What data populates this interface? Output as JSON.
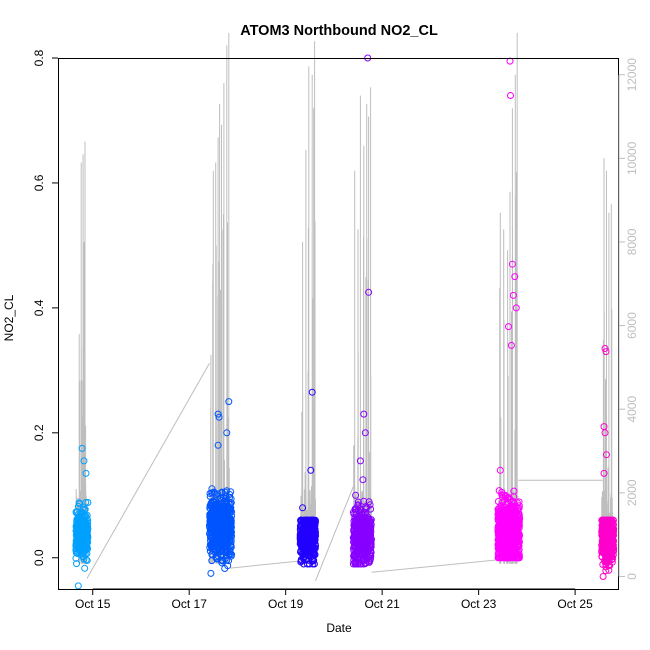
{
  "chart_data": {
    "type": "scatter",
    "title": "ATOM3 Northbound NO2_CL",
    "xlabel": "Date",
    "ylabel": "NO2_CL",
    "x_ticks": [
      "Oct 15",
      "Oct 17",
      "Oct 19",
      "Oct 21",
      "Oct 23",
      "Oct 25"
    ],
    "x_tick_days": [
      15,
      17,
      19,
      21,
      23,
      25
    ],
    "xlim_days": [
      14.28,
      25.91
    ],
    "ylim": [
      -0.05,
      0.8
    ],
    "y_ticks": [
      "0.0",
      "0.2",
      "0.4",
      "0.6",
      "0.8"
    ],
    "y_tick_values": [
      0.0,
      0.2,
      0.4,
      0.6,
      0.8
    ],
    "y2_ticks": [
      "0",
      "2000",
      "4000",
      "6000",
      "8000",
      "10000",
      "12000"
    ],
    "y2_tick_values": [
      0,
      2000,
      4000,
      6000,
      8000,
      10000,
      12000
    ],
    "y2lim": [
      -300,
      12400
    ],
    "grid": false,
    "secondary_series": {
      "color": "#bebebe",
      "segments": [
        {
          "day_start": 14.65,
          "day_end": 14.88,
          "base": 300,
          "peaks": [
            [
              14.72,
              5800
            ],
            [
              14.76,
              9900
            ],
            [
              14.8,
              10100
            ],
            [
              14.84,
              10400
            ],
            [
              14.82,
              8000
            ]
          ]
        },
        {
          "day_start": 17.42,
          "day_end": 17.85,
          "base": 300,
          "peaks": [
            [
              17.45,
              5300
            ],
            [
              17.5,
              9700
            ],
            [
              17.55,
              9900
            ],
            [
              17.6,
              10500
            ],
            [
              17.63,
              11300
            ],
            [
              17.67,
              10800
            ],
            [
              17.72,
              11800
            ],
            [
              17.78,
              12700
            ],
            [
              17.82,
              13000
            ]
          ]
        },
        {
          "day_start": 19.3,
          "day_end": 19.62,
          "base": 300,
          "peaks": [
            [
              19.35,
              8000
            ],
            [
              19.42,
              10200
            ],
            [
              19.48,
              12200
            ],
            [
              19.55,
              12000
            ],
            [
              19.6,
              12800
            ],
            [
              19.58,
              11200
            ]
          ]
        },
        {
          "day_start": 20.4,
          "day_end": 20.78,
          "base": 300,
          "peaks": [
            [
              20.43,
              9700
            ],
            [
              20.5,
              8300
            ],
            [
              20.55,
              11500
            ],
            [
              20.62,
              10300
            ],
            [
              20.68,
              11300
            ],
            [
              20.72,
              11000
            ],
            [
              20.76,
              11700
            ]
          ]
        },
        {
          "day_start": 23.4,
          "day_end": 23.82,
          "base": 300,
          "peaks": [
            [
              23.45,
              8700
            ],
            [
              23.52,
              8300
            ],
            [
              23.6,
              7800
            ],
            [
              23.65,
              9200
            ],
            [
              23.7,
              11200
            ],
            [
              23.76,
              12000
            ],
            [
              23.8,
              13000
            ]
          ]
        },
        {
          "day_start": 25.55,
          "day_end": 25.78,
          "base": 300,
          "peaks": [
            [
              25.6,
              10000
            ],
            [
              25.65,
              9700
            ],
            [
              25.7,
              8700
            ],
            [
              25.75,
              8900
            ]
          ]
        }
      ],
      "connectors": [
        [
          14.88,
          -50,
          17.42,
          5100
        ],
        [
          17.85,
          200,
          19.55,
          400
        ],
        [
          19.62,
          -100,
          20.42,
          2200
        ],
        [
          20.78,
          100,
          23.42,
          400
        ],
        [
          23.82,
          2300,
          25.6,
          2300
        ]
      ]
    },
    "series": [
      {
        "color": "#00a0ff",
        "day_start": 14.65,
        "day_end": 14.9,
        "center": 0.04,
        "spread": 0.04,
        "min": -0.045,
        "max": 0.175,
        "count": 260,
        "outliers": [
          [
            14.78,
            0.175
          ],
          [
            14.82,
            0.155
          ],
          [
            14.7,
            -0.045
          ],
          [
            14.86,
            0.135
          ]
        ]
      },
      {
        "color": "#0055ff",
        "day_start": 17.42,
        "day_end": 17.88,
        "center": 0.05,
        "spread": 0.05,
        "min": -0.03,
        "max": 0.25,
        "count": 520,
        "outliers": [
          [
            17.6,
            0.23
          ],
          [
            17.62,
            0.225
          ],
          [
            17.82,
            0.25
          ],
          [
            17.78,
            0.2
          ],
          [
            17.6,
            0.18
          ],
          [
            17.45,
            -0.025
          ]
        ]
      },
      {
        "color": "#2200ff",
        "day_start": 19.3,
        "day_end": 19.62,
        "center": 0.035,
        "spread": 0.04,
        "min": -0.01,
        "max": 0.1,
        "count": 330,
        "outliers": [
          [
            19.55,
            0.265
          ],
          [
            19.52,
            0.14
          ],
          [
            19.45,
            -0.01
          ],
          [
            19.35,
            0.08
          ]
        ]
      },
      {
        "color": "#8800ff",
        "day_start": 20.4,
        "day_end": 20.78,
        "center": 0.035,
        "spread": 0.045,
        "min": -0.01,
        "max": 0.2,
        "count": 360,
        "outliers": [
          [
            20.7,
            0.8
          ],
          [
            20.72,
            0.425
          ],
          [
            20.62,
            0.23
          ],
          [
            20.65,
            0.2
          ],
          [
            20.55,
            0.155
          ],
          [
            20.45,
            0.1
          ],
          [
            20.6,
            0.125
          ]
        ]
      },
      {
        "color": "#ff00ff",
        "day_start": 23.4,
        "day_end": 23.85,
        "center": 0.04,
        "spread": 0.05,
        "min": 0.0,
        "max": 0.33,
        "count": 620,
        "outliers": [
          [
            23.65,
            0.795
          ],
          [
            23.66,
            0.74
          ],
          [
            23.7,
            0.47
          ],
          [
            23.75,
            0.45
          ],
          [
            23.72,
            0.42
          ],
          [
            23.78,
            0.4
          ],
          [
            23.62,
            0.37
          ],
          [
            23.68,
            0.34
          ],
          [
            23.45,
            0.14
          ],
          [
            23.55,
            0.1
          ]
        ]
      },
      {
        "color": "#ff00cc",
        "day_start": 25.55,
        "day_end": 25.8,
        "center": 0.035,
        "spread": 0.04,
        "min": -0.03,
        "max": 0.1,
        "count": 380,
        "outliers": [
          [
            25.62,
            0.335
          ],
          [
            25.64,
            0.33
          ],
          [
            25.6,
            0.21
          ],
          [
            25.62,
            0.2
          ],
          [
            25.65,
            0.165
          ],
          [
            25.6,
            0.135
          ],
          [
            25.58,
            -0.03
          ],
          [
            25.7,
            -0.02
          ]
        ]
      }
    ]
  }
}
